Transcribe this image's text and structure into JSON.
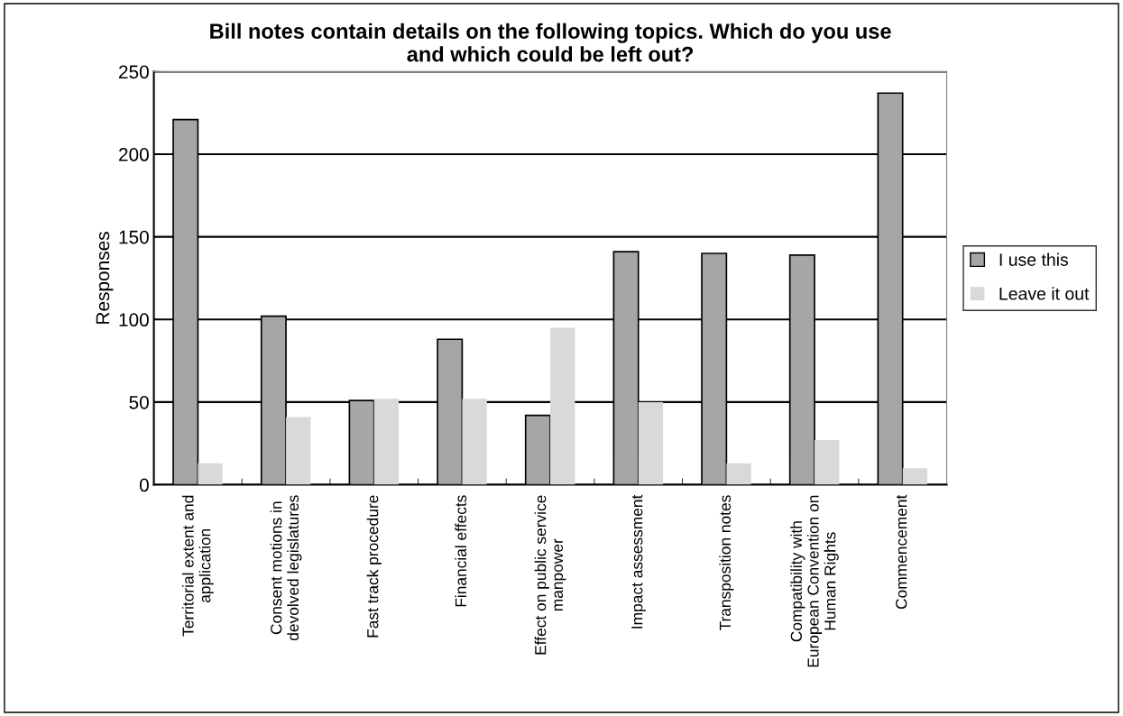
{
  "chart_data": {
    "type": "bar",
    "title": "Bill notes contain details on the following topics. Which do you use\nand which could be left out?",
    "ylabel": "Responses",
    "categories": [
      "Territorial extent and\napplication",
      "Consent motions in\ndevolved legislatures",
      "Fast track procedure",
      "Financial effects",
      "Effect on public service\nmanpower",
      "Impact assessment",
      "Transposition notes",
      "Compatibility with\nEuropean Convention on\nHuman Rights",
      "Commencement"
    ],
    "series": [
      {
        "name": "I use this",
        "color": "#a6a6a6",
        "values": [
          221,
          102,
          51,
          88,
          42,
          141,
          140,
          139,
          237
        ]
      },
      {
        "name": "Leave it out",
        "color": "#d9d9d9",
        "values": [
          13,
          41,
          52,
          52,
          95,
          50,
          13,
          27,
          10
        ]
      }
    ],
    "ylim": [
      0,
      250
    ],
    "yticks": [
      0,
      50,
      100,
      150,
      200,
      250
    ],
    "grid": "y",
    "legend": "right"
  }
}
